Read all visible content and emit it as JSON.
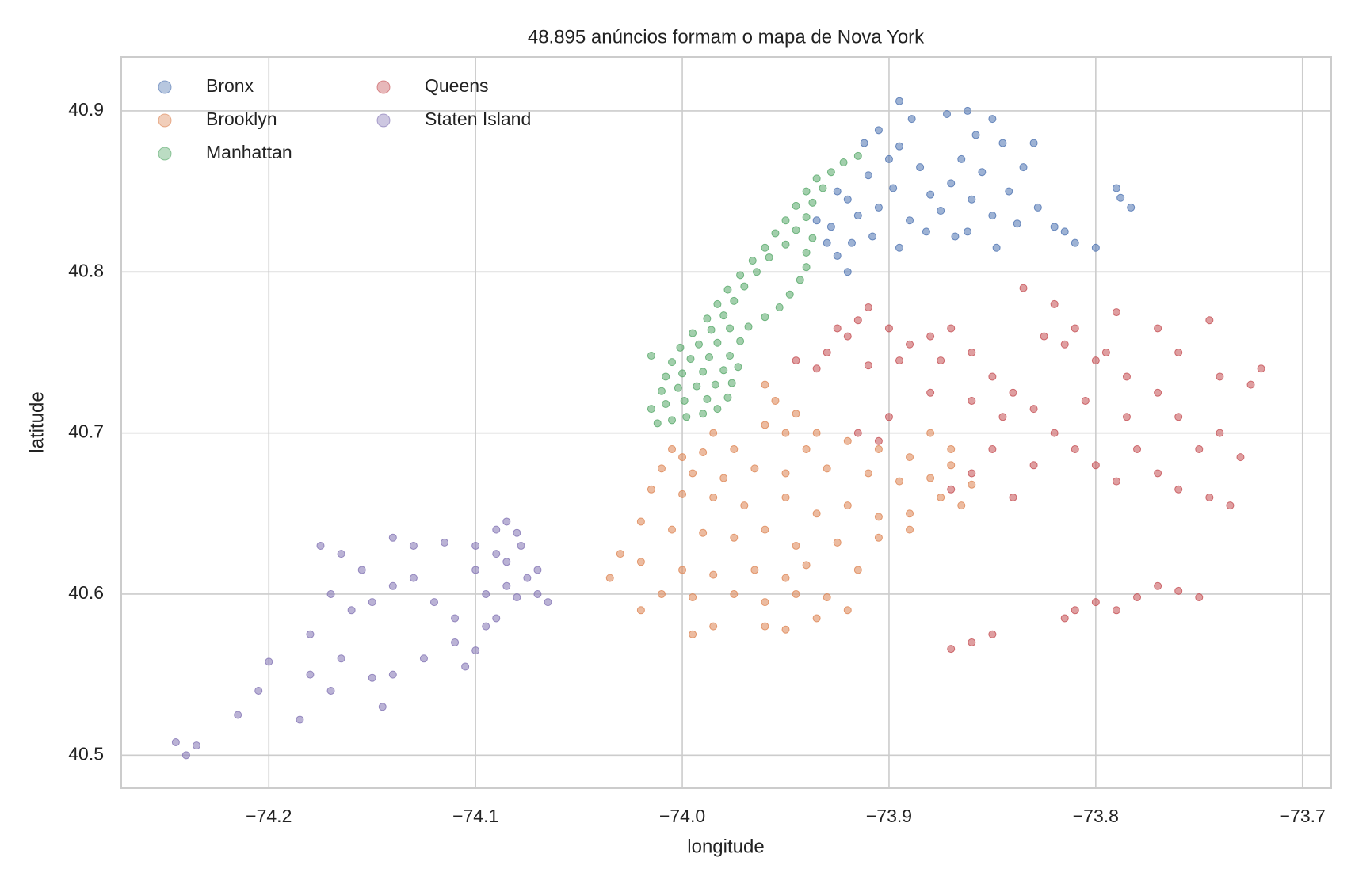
{
  "chart_data": {
    "type": "scatter",
    "title": "48.895 anúncios formam o mapa de Nova York",
    "xlabel": "longitude",
    "ylabel": "latitude",
    "xlim": [
      -74.2714,
      -73.6861
    ],
    "ylim": [
      40.4795,
      40.9334
    ],
    "xticks": [
      {
        "value": -74.2,
        "label": "−74.2"
      },
      {
        "value": -74.1,
        "label": "−74.1"
      },
      {
        "value": -74.0,
        "label": "−74.0"
      },
      {
        "value": -73.9,
        "label": "−73.9"
      },
      {
        "value": -73.8,
        "label": "−73.8"
      },
      {
        "value": -73.7,
        "label": "−73.7"
      }
    ],
    "yticks": [
      40.5,
      40.6,
      40.7,
      40.8,
      40.9
    ],
    "grid": true,
    "legend": "upper left",
    "series": [
      {
        "name": "Bronx",
        "color": "#4c72b0",
        "x": [
          -73.925,
          -73.918,
          -73.928,
          -73.915,
          -73.92,
          -73.905,
          -73.898,
          -73.91,
          -73.9,
          -73.912,
          -73.905,
          -73.895,
          -73.885,
          -73.88,
          -73.89,
          -73.875,
          -73.87,
          -73.865,
          -73.858,
          -73.85,
          -73.845,
          -73.855,
          -73.86,
          -73.85,
          -73.842,
          -73.835,
          -73.83,
          -73.838,
          -73.828,
          -73.82,
          -73.848,
          -73.862,
          -73.908,
          -73.895,
          -73.882,
          -73.92,
          -73.93,
          -73.935,
          -73.895,
          -73.889,
          -73.79,
          -73.788,
          -73.783,
          -73.815,
          -73.81,
          -73.8,
          -73.872,
          -73.862,
          -73.868,
          -73.925
        ],
        "y": [
          40.81,
          40.818,
          40.828,
          40.835,
          40.845,
          40.84,
          40.852,
          40.86,
          40.87,
          40.88,
          40.888,
          40.878,
          40.865,
          40.848,
          40.832,
          40.838,
          40.855,
          40.87,
          40.885,
          40.895,
          40.88,
          40.862,
          40.845,
          40.835,
          40.85,
          40.865,
          40.88,
          40.83,
          40.84,
          40.828,
          40.815,
          40.825,
          40.822,
          40.815,
          40.825,
          40.8,
          40.818,
          40.832,
          40.906,
          40.895,
          40.852,
          40.846,
          40.84,
          40.825,
          40.818,
          40.815,
          40.898,
          40.9,
          40.822,
          40.85
        ]
      },
      {
        "name": "Brooklyn",
        "color": "#dd8452",
        "x": [
          -73.96,
          -73.955,
          -73.945,
          -73.96,
          -73.95,
          -73.935,
          -73.92,
          -73.905,
          -73.89,
          -73.94,
          -73.975,
          -73.99,
          -74.0,
          -74.01,
          -73.995,
          -73.98,
          -73.965,
          -73.95,
          -73.93,
          -73.91,
          -73.895,
          -73.88,
          -73.87,
          -74.015,
          -74.0,
          -73.985,
          -73.97,
          -73.95,
          -73.935,
          -73.92,
          -73.905,
          -73.89,
          -73.875,
          -73.86,
          -74.02,
          -74.005,
          -73.99,
          -73.975,
          -73.96,
          -73.945,
          -73.925,
          -73.905,
          -73.89,
          -74.03,
          -74.02,
          -74.0,
          -73.985,
          -73.965,
          -73.95,
          -73.94,
          -73.915,
          -74.035,
          -74.01,
          -73.995,
          -73.975,
          -73.96,
          -73.945,
          -73.93,
          -73.96,
          -73.95,
          -73.985,
          -73.995,
          -73.935,
          -73.92,
          -74.02,
          -73.87,
          -73.88,
          -73.865,
          -73.985,
          -74.005
        ],
        "y": [
          40.73,
          40.72,
          40.712,
          40.705,
          40.7,
          40.7,
          40.695,
          40.69,
          40.685,
          40.69,
          40.69,
          40.688,
          40.685,
          40.678,
          40.675,
          40.672,
          40.678,
          40.675,
          40.678,
          40.675,
          40.67,
          40.672,
          40.68,
          40.665,
          40.662,
          40.66,
          40.655,
          40.66,
          40.65,
          40.655,
          40.648,
          40.65,
          40.66,
          40.668,
          40.645,
          40.64,
          40.638,
          40.635,
          40.64,
          40.63,
          40.632,
          40.635,
          40.64,
          40.625,
          40.62,
          40.615,
          40.612,
          40.615,
          40.61,
          40.618,
          40.615,
          40.61,
          40.6,
          40.598,
          40.6,
          40.595,
          40.6,
          40.598,
          40.58,
          40.578,
          40.58,
          40.575,
          40.585,
          40.59,
          40.59,
          40.69,
          40.7,
          40.655,
          40.7,
          40.69
        ]
      },
      {
        "name": "Manhattan",
        "color": "#55a868",
        "x": [
          -74.012,
          -74.005,
          -73.998,
          -73.99,
          -73.983,
          -74.015,
          -74.008,
          -73.999,
          -73.988,
          -73.978,
          -74.01,
          -74.002,
          -73.993,
          -73.984,
          -73.976,
          -74.008,
          -74.0,
          -73.99,
          -73.98,
          -73.973,
          -74.005,
          -73.996,
          -73.987,
          -73.977,
          -74.001,
          -73.992,
          -73.983,
          -73.972,
          -73.995,
          -73.986,
          -73.977,
          -73.968,
          -73.988,
          -73.98,
          -73.96,
          -73.983,
          -73.975,
          -73.953,
          -73.978,
          -73.97,
          -73.948,
          -73.972,
          -73.964,
          -73.943,
          -73.966,
          -73.958,
          -73.94,
          -73.96,
          -73.95,
          -73.94,
          -73.955,
          -73.945,
          -73.937,
          -73.95,
          -73.94,
          -73.945,
          -73.937,
          -73.94,
          -73.932,
          -73.935,
          -73.928,
          -73.922,
          -73.915,
          -74.015
        ],
        "y": [
          40.706,
          40.708,
          40.71,
          40.712,
          40.715,
          40.715,
          40.718,
          40.72,
          40.721,
          40.722,
          40.726,
          40.728,
          40.729,
          40.73,
          40.731,
          40.735,
          40.737,
          40.738,
          40.739,
          40.741,
          40.744,
          40.746,
          40.747,
          40.748,
          40.753,
          40.755,
          40.756,
          40.757,
          40.762,
          40.764,
          40.765,
          40.766,
          40.771,
          40.773,
          40.772,
          40.78,
          40.782,
          40.778,
          40.789,
          40.791,
          40.786,
          40.798,
          40.8,
          40.795,
          40.807,
          40.809,
          40.803,
          40.815,
          40.817,
          40.812,
          40.824,
          40.826,
          40.821,
          40.832,
          40.834,
          40.841,
          40.843,
          40.85,
          40.852,
          40.858,
          40.862,
          40.868,
          40.872,
          40.748
        ]
      },
      {
        "name": "Queens",
        "color": "#c44e52",
        "x": [
          -73.945,
          -73.93,
          -73.92,
          -73.915,
          -73.91,
          -73.925,
          -73.9,
          -73.89,
          -73.88,
          -73.87,
          -73.86,
          -73.875,
          -73.895,
          -73.91,
          -73.935,
          -73.85,
          -73.84,
          -73.83,
          -73.845,
          -73.86,
          -73.88,
          -73.9,
          -73.915,
          -73.905,
          -73.82,
          -73.81,
          -73.8,
          -73.79,
          -73.78,
          -73.77,
          -73.76,
          -73.75,
          -73.74,
          -73.73,
          -73.745,
          -73.735,
          -73.76,
          -73.77,
          -73.785,
          -73.8,
          -73.815,
          -73.825,
          -73.81,
          -73.795,
          -73.76,
          -73.74,
          -73.725,
          -73.72,
          -73.85,
          -73.86,
          -73.87,
          -73.84,
          -73.83,
          -73.835,
          -73.82,
          -73.79,
          -73.77,
          -73.745,
          -73.81,
          -73.8,
          -73.79,
          -73.78,
          -73.77,
          -73.76,
          -73.75,
          -73.815,
          -73.85,
          -73.86,
          -73.87,
          -73.785,
          -73.805
        ],
        "y": [
          40.745,
          40.75,
          40.76,
          40.77,
          40.778,
          40.765,
          40.765,
          40.755,
          40.76,
          40.765,
          40.75,
          40.745,
          40.745,
          40.742,
          40.74,
          40.735,
          40.725,
          40.715,
          40.71,
          40.72,
          40.725,
          40.71,
          40.7,
          40.695,
          40.7,
          40.69,
          40.68,
          40.67,
          40.69,
          40.675,
          40.665,
          40.69,
          40.7,
          40.685,
          40.66,
          40.655,
          40.71,
          40.725,
          40.735,
          40.745,
          40.755,
          40.76,
          40.765,
          40.75,
          40.75,
          40.735,
          40.73,
          40.74,
          40.69,
          40.675,
          40.665,
          40.66,
          40.68,
          40.79,
          40.78,
          40.775,
          40.765,
          40.77,
          40.59,
          40.595,
          40.59,
          40.598,
          40.605,
          40.602,
          40.598,
          40.585,
          40.575,
          40.57,
          40.566,
          40.71,
          40.72
        ]
      },
      {
        "name": "Staten Island",
        "color": "#8172b3",
        "x": [
          -74.245,
          -74.24,
          -74.235,
          -74.215,
          -74.205,
          -74.2,
          -74.185,
          -74.18,
          -74.17,
          -74.165,
          -74.15,
          -74.14,
          -74.145,
          -74.125,
          -74.11,
          -74.1,
          -74.095,
          -74.17,
          -74.16,
          -74.15,
          -74.14,
          -74.13,
          -74.12,
          -74.11,
          -74.175,
          -74.165,
          -74.14,
          -74.13,
          -74.115,
          -74.1,
          -74.09,
          -74.085,
          -74.08,
          -74.078,
          -74.09,
          -74.085,
          -74.08,
          -74.075,
          -74.07,
          -74.065,
          -74.07,
          -74.095,
          -74.09,
          -74.18,
          -74.155,
          -74.105,
          -74.085,
          -74.1
        ],
        "y": [
          40.508,
          40.5,
          40.506,
          40.525,
          40.54,
          40.558,
          40.522,
          40.55,
          40.54,
          40.56,
          40.548,
          40.55,
          40.53,
          40.56,
          40.57,
          40.565,
          40.58,
          40.6,
          40.59,
          40.595,
          40.605,
          40.61,
          40.595,
          40.585,
          40.63,
          40.625,
          40.635,
          40.63,
          40.632,
          40.615,
          40.64,
          40.645,
          40.638,
          40.63,
          40.625,
          40.605,
          40.598,
          40.61,
          40.6,
          40.595,
          40.615,
          40.6,
          40.585,
          40.575,
          40.615,
          40.555,
          40.62,
          40.63
        ]
      }
    ]
  }
}
